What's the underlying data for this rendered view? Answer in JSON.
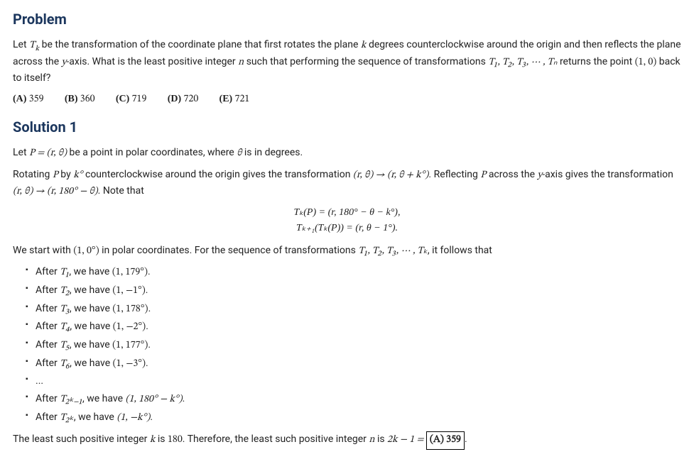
{
  "headings": {
    "problem": "Problem",
    "solution1": "Solution 1"
  },
  "problem": {
    "p1a": "Let ",
    "p1_Tk": "T",
    "p1_k": "k",
    "p1b": " be the transformation of the coordinate plane that first rotates the plane ",
    "p1_kk": "k",
    "p1c": " degrees counterclockwise around the origin and then reflects the plane across the ",
    "p1_y": "y",
    "p1d": "-axis. What is the least positive integer ",
    "p1_n": "n",
    "p1e": " such that performing the sequence of transformations ",
    "p1_seq": "T₁, T₂, T₃, ⋯ , Tₙ",
    "p1f": " returns the point ",
    "p1_pt": "(1, 0)",
    "p1g": " back to itself?"
  },
  "choices": {
    "a_label": "(A)",
    "a_val": "359",
    "b_label": "(B)",
    "b_val": "360",
    "c_label": "(C)",
    "c_val": "719",
    "d_label": "(D)",
    "d_val": "720",
    "e_label": "(E)",
    "e_val": "721"
  },
  "sol": {
    "s1a": "Let ",
    "s1_P": "P = (r, θ)",
    "s1b": " be a point in polar coordinates, where ",
    "s1_th": "θ",
    "s1c": " is in degrees.",
    "s2a": "Rotating ",
    "s2_P": "P",
    "s2b": " by ",
    "s2_kdeg": "k°",
    "s2c": " counterclockwise around the origin gives the transformation ",
    "s2_tr1": "(r, θ) → (r, θ + k°)",
    "s2d": ". Reflecting ",
    "s2_P2": "P",
    "s2e": " across the ",
    "s2_y": "y",
    "s2f": "-axis gives the transformation ",
    "s2_tr2": "(r, θ) → (r, 180° − θ)",
    "s2g": ". Note that",
    "eq1": "Tₖ(P) = (r, 180° − θ − k°),",
    "eq2": "Tₖ₊₁(Tₖ(P)) = (r, θ − 1°).",
    "s3a": "We start with ",
    "s3_pt": "(1, 0°)",
    "s3b": " in polar coordinates. For the sequence of transformations ",
    "s3_seq": "T₁, T₂, T₃, ⋯ , Tₖ",
    "s3c": ", it follows that"
  },
  "steps": {
    "1a": "After ",
    "1t": "T₁",
    "1b": ", we have ",
    "1v": "(1, 179°)",
    "1c": ".",
    "2a": "After ",
    "2t": "T₂",
    "2b": ", we have ",
    "2v": "(1, −1°)",
    "2c": ".",
    "3a": "After ",
    "3t": "T₃",
    "3b": ", we have ",
    "3v": "(1, 178°)",
    "3c": ".",
    "4a": "After ",
    "4t": "T₄",
    "4b": ", we have ",
    "4v": "(1, −2°)",
    "4c": ".",
    "5a": "After ",
    "5t": "T₅",
    "5b": ", we have ",
    "5v": "(1, 177°)",
    "5c": ".",
    "6a": "After ",
    "6t": "T₆",
    "6b": ", we have ",
    "6v": "(1, −3°)",
    "6c": ".",
    "dots": "...",
    "7a": "After ",
    "7t": "T₂ₖ₋₁",
    "7b": ", we have ",
    "7v": "(1, 180° − k°)",
    "7c": ".",
    "8a": "After ",
    "8t": "T₂ₖ",
    "8b": ", we have ",
    "8v": "(1, −k°)",
    "8c": "."
  },
  "concl": {
    "a": "The least such positive integer ",
    "k": "k",
    "b": " is ",
    "v180": "180",
    "c": ". Therefore, the least such positive integer ",
    "n": "n",
    "d": " is ",
    "expr": "2k − 1 = ",
    "boxed": "(A) 359",
    "e": "."
  }
}
